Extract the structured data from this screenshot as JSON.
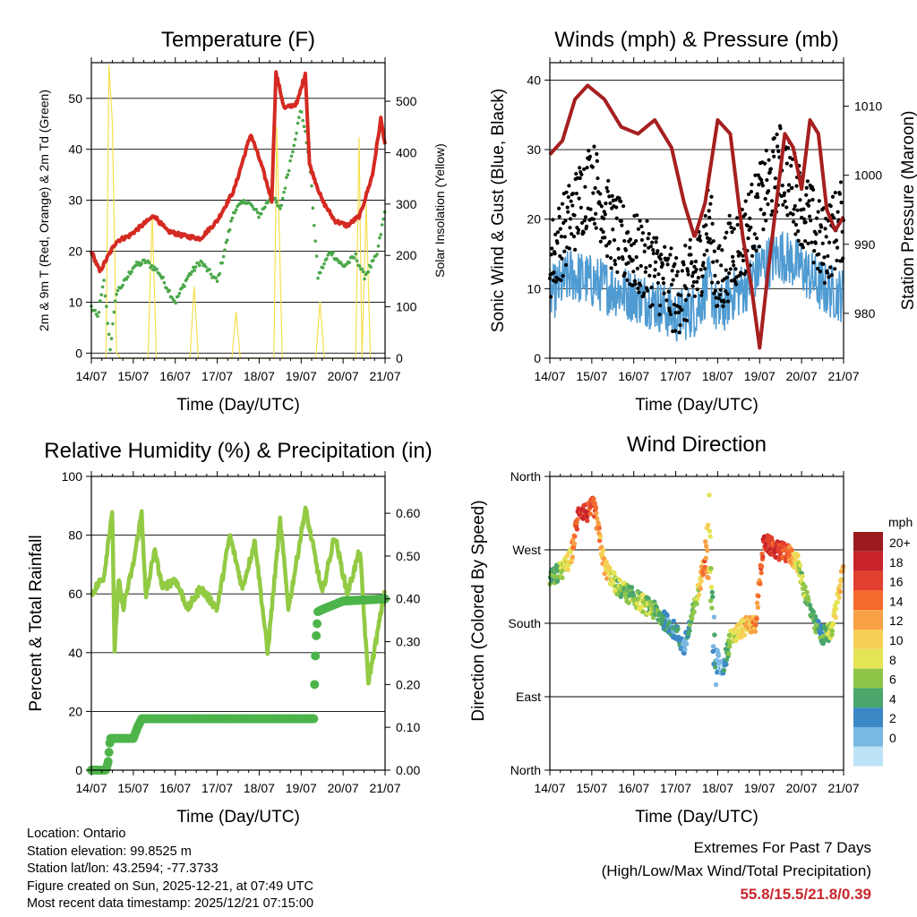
{
  "time_ticks": [
    "14/07",
    "15/07",
    "16/07",
    "17/07",
    "18/07",
    "19/07",
    "20/07",
    "21/07"
  ],
  "panels": {
    "temperature": {
      "title": "Temperature (F)",
      "xlabel": "Time (Day/UTC)",
      "ylabel_left": "2m & 9m T (Red, Orange) & 2m Td (Green)",
      "ylabel_right": "Solar Insolation (Yellow)",
      "left_ticks": [
        "0",
        "10",
        "20",
        "30",
        "40",
        "50"
      ],
      "right_ticks": [
        "0",
        "100",
        "200",
        "300",
        "400",
        "500"
      ]
    },
    "winds": {
      "title": "Winds (mph) & Pressure (mb)",
      "xlabel": "Time (Day/UTC)",
      "ylabel_left": "Sonic Wind & Gust (Blue, Black)",
      "ylabel_right": "Station Pressure (Maroon)",
      "left_ticks": [
        "0",
        "10",
        "20",
        "30",
        "40"
      ],
      "right_ticks": [
        "980",
        "990",
        "1000",
        "1010"
      ]
    },
    "humidity": {
      "title": "Relative Humidity (%) & Precipitation (in)",
      "xlabel": "Time (Day/UTC)",
      "ylabel_left": "Percent & Total Rainfall",
      "left_ticks": [
        "0",
        "20",
        "40",
        "60",
        "80",
        "100"
      ],
      "right_ticks": [
        "0.00",
        "0.10",
        "0.20",
        "0.30",
        "0.40",
        "0.50",
        "0.60"
      ]
    },
    "direction": {
      "title": "Wind Direction",
      "xlabel": "Time (Day/UTC)",
      "ylabel_left": "Direction (Colored By Speed)",
      "left_ticks": [
        "North",
        "East",
        "South",
        "West",
        "North"
      ],
      "legend_title": "mph",
      "legend_labels": [
        "20+",
        "18",
        "16",
        "14",
        "12",
        "10",
        "8",
        "6",
        "4",
        "2",
        "0"
      ],
      "legend_colors": [
        "#9b1b1e",
        "#c8242a",
        "#e2402e",
        "#f26a2e",
        "#f8a046",
        "#f6d055",
        "#e4e455",
        "#8ec64a",
        "#4aa66a",
        "#3b88c4",
        "#7ab8e4",
        "#bde3f6"
      ]
    }
  },
  "info": {
    "location": "Location: Ontario",
    "elevation": "Station elevation: 99.8525 m",
    "latlon": "Station lat/lon: 43.2594; -77.3733",
    "created": "Figure created on Sun, 2025-12-21, at 07:49 UTC",
    "recent": "Most recent data timestamp: 2025/12/21 07:15:00"
  },
  "extremes": {
    "line1": "Extremes For Past 7 Days",
    "line2": "(High/Low/Max Wind/Total Precipitation)",
    "values": "55.8/15.5/21.8/0.39"
  },
  "chart_data": [
    {
      "type": "line",
      "title": "Temperature (F)",
      "x_unit": "days since 14/07 00 UTC",
      "ylim": [
        -1,
        57
      ],
      "y2lim": [
        0,
        575
      ],
      "series": [
        {
          "name": "2m & 9m T",
          "color": "#d42a22",
          "axis": "left",
          "x": [
            0,
            0.2,
            0.4,
            0.6,
            0.9,
            1.2,
            1.5,
            1.8,
            2.2,
            2.6,
            3.0,
            3.4,
            3.8,
            4.05,
            4.3,
            4.4,
            4.6,
            4.9,
            5.1,
            5.2,
            5.5,
            5.8,
            6.1,
            6.4,
            6.7,
            6.9,
            7.0
          ],
          "y": [
            20,
            16,
            19,
            22,
            23,
            25,
            27,
            24,
            23,
            22.5,
            26,
            32,
            43,
            37,
            30,
            55,
            48,
            49,
            55,
            37,
            30,
            26,
            25,
            27,
            35,
            46,
            41
          ]
        },
        {
          "name": "2m Td",
          "color": "#4aa84a",
          "axis": "left",
          "x": [
            0,
            0.15,
            0.3,
            0.45,
            0.6,
            0.8,
            1.0,
            1.3,
            1.6,
            2.0,
            2.3,
            2.6,
            3.0,
            3.4,
            3.7,
            4.0,
            4.3,
            4.5,
            4.8,
            5.0,
            5.2,
            5.4,
            5.7,
            6.0,
            6.3,
            6.5,
            6.8,
            7.0
          ],
          "y": [
            9,
            7,
            14,
            1,
            12,
            14,
            17,
            18,
            16,
            10,
            15,
            18,
            14,
            28,
            30,
            27,
            31,
            28,
            40,
            48,
            38,
            15,
            20,
            17,
            19,
            15,
            19,
            28
          ]
        },
        {
          "name": "Solar Insolation",
          "color": "#f5e04f",
          "axis": "right",
          "x": [
            0.35,
            0.42,
            0.5,
            0.6,
            0.7,
            1.35,
            1.45,
            1.55,
            2.35,
            2.45,
            2.55,
            3.35,
            3.45,
            3.55,
            4.35,
            4.42,
            4.55,
            5.35,
            5.45,
            5.55,
            6.3,
            6.38,
            6.45,
            6.55,
            6.65
          ],
          "y": [
            0,
            570,
            460,
            10,
            0,
            0,
            280,
            0,
            0,
            140,
            0,
            0,
            90,
            0,
            0,
            450,
            0,
            0,
            110,
            0,
            0,
            430,
            0,
            300,
            0
          ]
        }
      ]
    },
    {
      "type": "line",
      "title": "Winds (mph) & Pressure (mb)",
      "x_unit": "days since 14/07 00 UTC",
      "ylim": [
        0,
        42.5
      ],
      "y2lim": [
        973.5,
        1016.3
      ],
      "series": [
        {
          "name": "Sonic Wind (mean)",
          "color": "#4f9bd2",
          "axis": "left",
          "x": [
            0,
            0.5,
            1.0,
            1.5,
            2.0,
            2.5,
            3.0,
            3.5,
            3.8,
            4.0,
            4.3,
            4.6,
            5.0,
            5.5,
            6.0,
            6.5,
            7.0
          ],
          "y": [
            9,
            12,
            11,
            10,
            9,
            8,
            6,
            7,
            11,
            6,
            9,
            10,
            13,
            15,
            13,
            10,
            9
          ]
        },
        {
          "name": "Gust (mean)",
          "color": "#000000",
          "axis": "left",
          "x": [
            0,
            0.5,
            1.0,
            1.5,
            2.0,
            2.5,
            3.0,
            3.5,
            3.8,
            4.0,
            4.3,
            4.6,
            5.0,
            5.5,
            6.0,
            6.5,
            7.0
          ],
          "y": [
            14,
            20,
            26,
            18,
            15,
            13,
            9,
            12,
            20,
            10,
            15,
            17,
            22,
            28,
            22,
            16,
            20
          ]
        },
        {
          "name": "Station Pressure",
          "color": "#a61f1f",
          "axis": "right",
          "x": [
            0,
            0.3,
            0.6,
            0.9,
            1.3,
            1.7,
            2.1,
            2.5,
            2.9,
            3.2,
            3.45,
            3.7,
            4.0,
            4.3,
            4.6,
            4.8,
            5.0,
            5.2,
            5.4,
            5.6,
            5.8,
            6.0,
            6.2,
            6.4,
            6.6,
            6.8,
            7.0
          ],
          "y": [
            1003,
            1005,
            1011,
            1013,
            1011,
            1007,
            1006,
            1008,
            1004,
            996,
            991,
            996,
            1008,
            1006,
            991,
            984,
            975,
            986,
            996,
            1006,
            1004,
            998,
            1008,
            1006,
            995,
            992,
            994
          ]
        }
      ]
    },
    {
      "type": "line",
      "title": "Relative Humidity (%) & Precipitation (in)",
      "x_unit": "days since 14/07 00 UTC",
      "ylim": [
        0,
        100
      ],
      "y2lim": [
        0,
        0.686
      ],
      "series": [
        {
          "name": "Relative Humidity",
          "color": "#92ca44",
          "axis": "left",
          "x": [
            0,
            0.3,
            0.5,
            0.55,
            0.65,
            0.75,
            1.0,
            1.2,
            1.3,
            1.5,
            1.7,
            2.0,
            2.3,
            2.6,
            3.0,
            3.3,
            3.6,
            3.9,
            4.2,
            4.4,
            4.5,
            4.7,
            4.9,
            5.1,
            5.3,
            5.5,
            5.8,
            6.1,
            6.4,
            6.6,
            6.8,
            7.0
          ],
          "y": [
            60,
            66,
            89,
            40,
            65,
            55,
            70,
            88,
            58,
            75,
            62,
            65,
            55,
            62,
            55,
            80,
            62,
            78,
            40,
            70,
            85,
            55,
            72,
            89,
            75,
            60,
            80,
            60,
            75,
            30,
            45,
            62
          ]
        },
        {
          "name": "Total Rainfall",
          "color": "#4db44a",
          "axis": "right",
          "x": [
            0,
            0.35,
            0.4,
            0.45,
            1.0,
            1.1,
            1.2,
            5.3,
            5.32,
            5.35,
            5.4,
            5.5,
            6.0,
            7.0
          ],
          "y": [
            0,
            0,
            0.02,
            0.074,
            0.074,
            0.1,
            0.12,
            0.12,
            0.2,
            0.3,
            0.37,
            0.375,
            0.395,
            0.4
          ]
        }
      ]
    },
    {
      "type": "scatter",
      "title": "Wind Direction",
      "x_unit": "days since 14/07 00 UTC",
      "ylim": [
        0,
        360
      ],
      "yticks": [
        "North",
        "East",
        "South",
        "West",
        "North"
      ],
      "series": [
        {
          "name": "Direction (mph-coloured)",
          "x": [
            0,
            0.3,
            0.5,
            0.7,
            0.9,
            1.05,
            1.3,
            1.6,
            1.9,
            2.2,
            2.5,
            2.8,
            3.0,
            3.2,
            3.5,
            3.7,
            3.8,
            3.9,
            4.1,
            4.3,
            4.6,
            4.9,
            5.1,
            5.4,
            5.7,
            5.9,
            6.1,
            6.3,
            6.5,
            6.7,
            6.9,
            7.0
          ],
          "y": [
            235,
            245,
            260,
            320,
            315,
            325,
            250,
            225,
            215,
            205,
            195,
            180,
            170,
            150,
            210,
            260,
            290,
            150,
            120,
            160,
            175,
            180,
            280,
            270,
            265,
            255,
            215,
            180,
            165,
            170,
            220,
            255
          ],
          "speed": [
            6,
            9,
            12,
            19,
            18,
            17,
            13,
            8,
            7,
            9,
            7,
            5,
            4,
            3,
            9,
            16,
            12,
            4,
            2,
            9,
            12,
            14,
            18,
            19,
            16,
            10,
            7,
            7,
            6,
            9,
            12,
            15
          ]
        }
      ]
    }
  ]
}
